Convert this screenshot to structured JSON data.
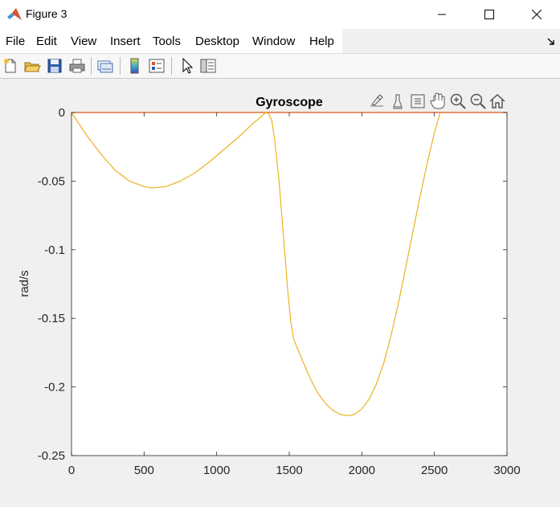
{
  "window": {
    "title": "Figure 3"
  },
  "menu": [
    "File",
    "Edit",
    "View",
    "Insert",
    "Tools",
    "Desktop",
    "Window",
    "Help"
  ],
  "toolbar": {
    "icons": [
      "new-figure-icon",
      "open-file-icon",
      "save-icon",
      "print-icon",
      "link-plot-icon",
      "colorbar-icon",
      "legend-icon",
      "edit-plot-arrow-icon",
      "property-inspector-icon"
    ]
  },
  "axes_toolbar": {
    "icons": [
      "brush-data-icon",
      "data-cursor-icon",
      "export-icon",
      "pan-icon",
      "zoom-in-icon",
      "zoom-out-icon",
      "home-icon"
    ]
  },
  "colors": {
    "series_yellow": "#EDB120",
    "series_red": "#D95319",
    "axes_bg": "#ffffff",
    "figure_bg": "#f0f0f0"
  },
  "chart_data": {
    "type": "line",
    "title": "Gyroscope",
    "xlabel": "",
    "ylabel": "rad/s",
    "xlim": [
      0,
      3000
    ],
    "ylim": [
      -0.25,
      0
    ],
    "xticks": [
      "0",
      "500",
      "1000",
      "1500",
      "2000",
      "2500",
      "3000"
    ],
    "yticks": [
      "0",
      "-0.05",
      "-0.1",
      "-0.15",
      "-0.2",
      "-0.25"
    ],
    "grid": false,
    "series": [
      {
        "color": "#D95319",
        "x": [
          0,
          3000
        ],
        "y": [
          0,
          0
        ]
      },
      {
        "color": "#EDB120",
        "x": [
          0,
          100,
          200,
          300,
          400,
          500,
          560,
          650,
          750,
          850,
          950,
          1050,
          1150,
          1250,
          1340,
          1360,
          1380,
          1400,
          1430,
          1460,
          1490,
          1510,
          1530,
          1545,
          1600,
          1650,
          1700,
          1750,
          1800,
          1850,
          1900,
          1950,
          2000,
          2050,
          2100,
          2150,
          2200,
          2250,
          2300,
          2350,
          2400,
          2450,
          2500,
          2540
        ],
        "y": [
          0,
          -0.016,
          -0.03,
          -0.042,
          -0.05,
          -0.054,
          -0.055,
          -0.054,
          -0.05,
          -0.044,
          -0.036,
          -0.027,
          -0.018,
          -0.008,
          0,
          -0.001,
          -0.006,
          -0.02,
          -0.05,
          -0.09,
          -0.13,
          -0.152,
          -0.165,
          -0.169,
          -0.183,
          -0.195,
          -0.205,
          -0.212,
          -0.217,
          -0.22,
          -0.221,
          -0.22,
          -0.216,
          -0.209,
          -0.198,
          -0.183,
          -0.163,
          -0.14,
          -0.114,
          -0.088,
          -0.062,
          -0.037,
          -0.015,
          0
        ]
      }
    ]
  }
}
